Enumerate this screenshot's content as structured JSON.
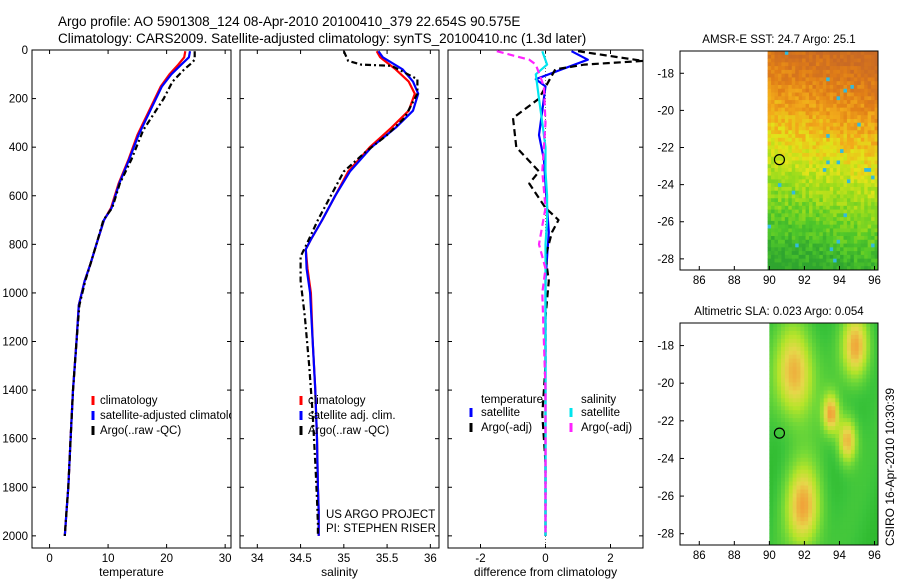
{
  "header": {
    "line1": "Argo profile: AO 5901308_124 08-Apr-2010 20100410_379 22.654S 90.575E",
    "line2": "Climatology: CARS2009. Satellite-adjusted climatology: synTS_20100410.nc (1.3d later)"
  },
  "side_label": "CSIRO 16-Apr-2010 10:30:39",
  "project_note": [
    "US ARGO PROJECT",
    "PI: STEPHEN RISER"
  ],
  "chart_data": [
    {
      "type": "line",
      "id": "temperature",
      "xlabel": "temperature",
      "xlim": [
        -3,
        31
      ],
      "ylim": [
        2050,
        0
      ],
      "xticks": [
        0,
        10,
        20,
        30
      ],
      "yticks": [
        0,
        200,
        400,
        600,
        800,
        1000,
        1200,
        1400,
        1600,
        1800,
        2000
      ],
      "legend": [
        "climatology",
        "satellite-adjusted climatology",
        "Argo(..raw -QC)"
      ],
      "series": [
        {
          "name": "climatology",
          "color": "#ff0000",
          "dash": "",
          "x": [
            23.2,
            23.0,
            22.0,
            20.5,
            19.0,
            17.0,
            15.0,
            13.5,
            11.8,
            10.5,
            9.3,
            8.0,
            7.0,
            6.0,
            5.0,
            4.6,
            4.0,
            3.6,
            3.2,
            2.9,
            2.6
          ],
          "y": [
            5,
            30,
            60,
            100,
            150,
            250,
            350,
            450,
            550,
            650,
            700,
            800,
            880,
            950,
            1050,
            1200,
            1400,
            1600,
            1800,
            1900,
            2000
          ]
        },
        {
          "name": "satellite-adjusted climatology",
          "color": "#0000ff",
          "dash": "",
          "x": [
            24.0,
            23.8,
            22.5,
            20.8,
            19.2,
            17.2,
            15.2,
            13.6,
            11.9,
            10.6,
            9.3,
            8.0,
            7.0,
            6.0,
            5.0,
            4.6,
            4.0,
            3.6,
            3.2,
            2.9,
            2.6
          ],
          "y": [
            5,
            30,
            60,
            100,
            150,
            250,
            350,
            450,
            550,
            650,
            700,
            800,
            880,
            950,
            1050,
            1200,
            1400,
            1600,
            1800,
            1900,
            2000
          ]
        },
        {
          "name": "Argo(..raw -QC)",
          "color": "#000000",
          "dash": "6,3,2,3",
          "x": [
            24.8,
            24.8,
            24.2,
            23.0,
            21.0,
            19.5,
            16.0,
            14.0,
            12.0,
            10.7,
            9.2,
            8.0,
            7.0,
            6.1,
            5.1,
            4.6,
            4.0,
            3.6,
            3.2,
            2.9,
            2.6
          ],
          "y": [
            5,
            40,
            55,
            80,
            130,
            200,
            330,
            450,
            550,
            650,
            700,
            800,
            880,
            950,
            1050,
            1200,
            1400,
            1600,
            1800,
            1900,
            2000
          ]
        }
      ]
    },
    {
      "type": "line",
      "id": "salinity",
      "xlabel": "salinity",
      "xlim": [
        33.8,
        36.1
      ],
      "ylim": [
        2050,
        0
      ],
      "xticks": [
        34,
        34.5,
        35,
        35.5,
        36
      ],
      "yticks": [
        0,
        200,
        400,
        600,
        800,
        1000,
        1200,
        1400,
        1600,
        1800,
        2000
      ],
      "legend": [
        "climatology",
        "satellite adj. clim.",
        "Argo(..raw -QC)"
      ],
      "series": [
        {
          "name": "climatology",
          "color": "#ff0000",
          "dash": "",
          "x": [
            35.38,
            35.42,
            35.6,
            35.75,
            35.82,
            35.75,
            35.55,
            35.3,
            35.05,
            34.9,
            34.75,
            34.62,
            34.56,
            34.58,
            34.62,
            34.64,
            34.67,
            34.69,
            34.7,
            34.71,
            34.71
          ],
          "y": [
            5,
            30,
            80,
            130,
            180,
            250,
            320,
            400,
            500,
            600,
            700,
            780,
            820,
            900,
            1000,
            1200,
            1400,
            1600,
            1800,
            1900,
            2000
          ]
        },
        {
          "name": "satellite adj. clim.",
          "color": "#0000ff",
          "dash": "",
          "x": [
            35.4,
            35.45,
            35.68,
            35.8,
            35.86,
            35.8,
            35.6,
            35.32,
            35.07,
            34.9,
            34.75,
            34.62,
            34.56,
            34.57,
            34.61,
            34.64,
            34.67,
            34.69,
            34.7,
            34.71,
            34.71
          ],
          "y": [
            5,
            30,
            80,
            130,
            180,
            250,
            320,
            400,
            500,
            600,
            700,
            780,
            820,
            900,
            1000,
            1200,
            1400,
            1600,
            1800,
            1900,
            2000
          ]
        },
        {
          "name": "Argo(..raw -QC)",
          "color": "#000000",
          "dash": "6,3,2,3",
          "x": [
            35.0,
            35.05,
            35.2,
            35.55,
            35.85,
            35.85,
            35.7,
            35.5,
            35.25,
            35.0,
            34.85,
            34.7,
            34.57,
            34.5,
            34.5,
            34.55,
            34.6,
            34.64,
            34.67,
            34.69,
            34.7,
            34.7
          ],
          "y": [
            5,
            45,
            60,
            65,
            120,
            180,
            280,
            350,
            420,
            500,
            600,
            700,
            800,
            850,
            950,
            1100,
            1300,
            1500,
            1700,
            1850,
            1950,
            2000
          ]
        }
      ]
    },
    {
      "type": "line",
      "id": "difference",
      "xlabel": "difference from climatology",
      "xlim": [
        -3,
        3
      ],
      "ylim": [
        2050,
        0
      ],
      "xticks": [
        -2,
        0,
        2
      ],
      "yticks": [
        0,
        200,
        400,
        600,
        800,
        1000,
        1200,
        1400,
        1600,
        1800,
        2000
      ],
      "legend_left_title": "temperature",
      "legend_right_title": "salinity",
      "legend": [
        "satellite",
        "Argo(-adj)",
        "satellite",
        "Argo(-adj)"
      ],
      "series": [
        {
          "name": "temperature satellite",
          "color": "#0000ff",
          "dash": "",
          "x": [
            0.8,
            1.3,
            0.5,
            -0.3,
            0.0,
            -0.1,
            -0.2,
            -0.05,
            0.0,
            0.05,
            0.1,
            0.05,
            0.0,
            0.0,
            0.0,
            0.0,
            0.0,
            0.0,
            0.0
          ],
          "y": [
            5,
            40,
            80,
            120,
            150,
            250,
            350,
            450,
            550,
            650,
            750,
            850,
            950,
            1100,
            1300,
            1500,
            1700,
            1900,
            2000
          ]
        },
        {
          "name": "temperature Argo(-adj)",
          "color": "#000000",
          "dash": "7,4",
          "x": [
            1.0,
            3.0,
            1.2,
            0.3,
            -0.2,
            -1.0,
            -0.9,
            -0.2,
            -0.5,
            0.0,
            0.4,
            0.2,
            0.0,
            0.1,
            0.0,
            0.0,
            -0.1,
            0.0,
            0.0,
            0.0
          ],
          "y": [
            5,
            45,
            60,
            80,
            200,
            280,
            400,
            500,
            550,
            650,
            700,
            750,
            850,
            950,
            1100,
            1300,
            1500,
            1700,
            1900,
            2000
          ]
        },
        {
          "name": "salinity satellite",
          "color": "#00e5ee",
          "dash": "",
          "x": [
            -0.1,
            0.05,
            -0.3,
            -0.2,
            -0.1,
            0.0,
            0.0,
            0.05,
            0.05,
            0.0,
            0.0,
            0.0,
            0.0,
            0.0,
            0.0,
            0.0,
            0.0,
            0.0
          ],
          "y": [
            5,
            60,
            100,
            200,
            300,
            400,
            500,
            600,
            700,
            800,
            900,
            1000,
            1200,
            1400,
            1600,
            1800,
            1900,
            2000
          ]
        },
        {
          "name": "salinity Argo(-adj)",
          "color": "#ff22ff",
          "dash": "7,4",
          "x": [
            -1.5,
            -0.5,
            -0.3,
            -0.05,
            0.0,
            -0.1,
            0.0,
            -0.2,
            0.0,
            -0.1,
            -0.05,
            0.0,
            0.0,
            0.0,
            0.0,
            0.0
          ],
          "y": [
            5,
            40,
            60,
            150,
            300,
            500,
            650,
            800,
            900,
            1000,
            1200,
            1400,
            1600,
            1800,
            1900,
            2000
          ]
        }
      ]
    },
    {
      "type": "heatmap",
      "id": "sst",
      "title": "AMSR-E SST: 24.7  Argo: 25.1",
      "xlim": [
        84.9,
        96.2
      ],
      "ylim": [
        -28.6,
        -16.8
      ],
      "xticks": [
        86,
        88,
        90,
        92,
        94,
        96
      ],
      "yticks": [
        -18,
        -20,
        -22,
        -24,
        -26,
        -28
      ],
      "data_start_lon": 89.9,
      "marker": {
        "lon": 90.575,
        "lat": -22.654
      },
      "colorscale": [
        "#2fa52f",
        "#50c82a",
        "#9adc1c",
        "#e2e41a",
        "#f2a91a",
        "#e07d17",
        "#c96a24"
      ]
    },
    {
      "type": "heatmap",
      "id": "sla",
      "title": "Altimetric SLA: 0.023  Argo: 0.054",
      "xlim": [
        84.9,
        96.2
      ],
      "ylim": [
        -28.6,
        -16.8
      ],
      "xticks": [
        86,
        88,
        90,
        92,
        94,
        96
      ],
      "yticks": [
        -18,
        -20,
        -22,
        -24,
        -26,
        -28
      ],
      "data_start_lon": 90.0,
      "marker": {
        "lon": 90.575,
        "lat": -22.654
      },
      "colorscale": [
        "#1aa81a",
        "#3bc43b",
        "#70d838",
        "#b6e42a",
        "#e6d84a",
        "#f0a43a"
      ]
    }
  ]
}
